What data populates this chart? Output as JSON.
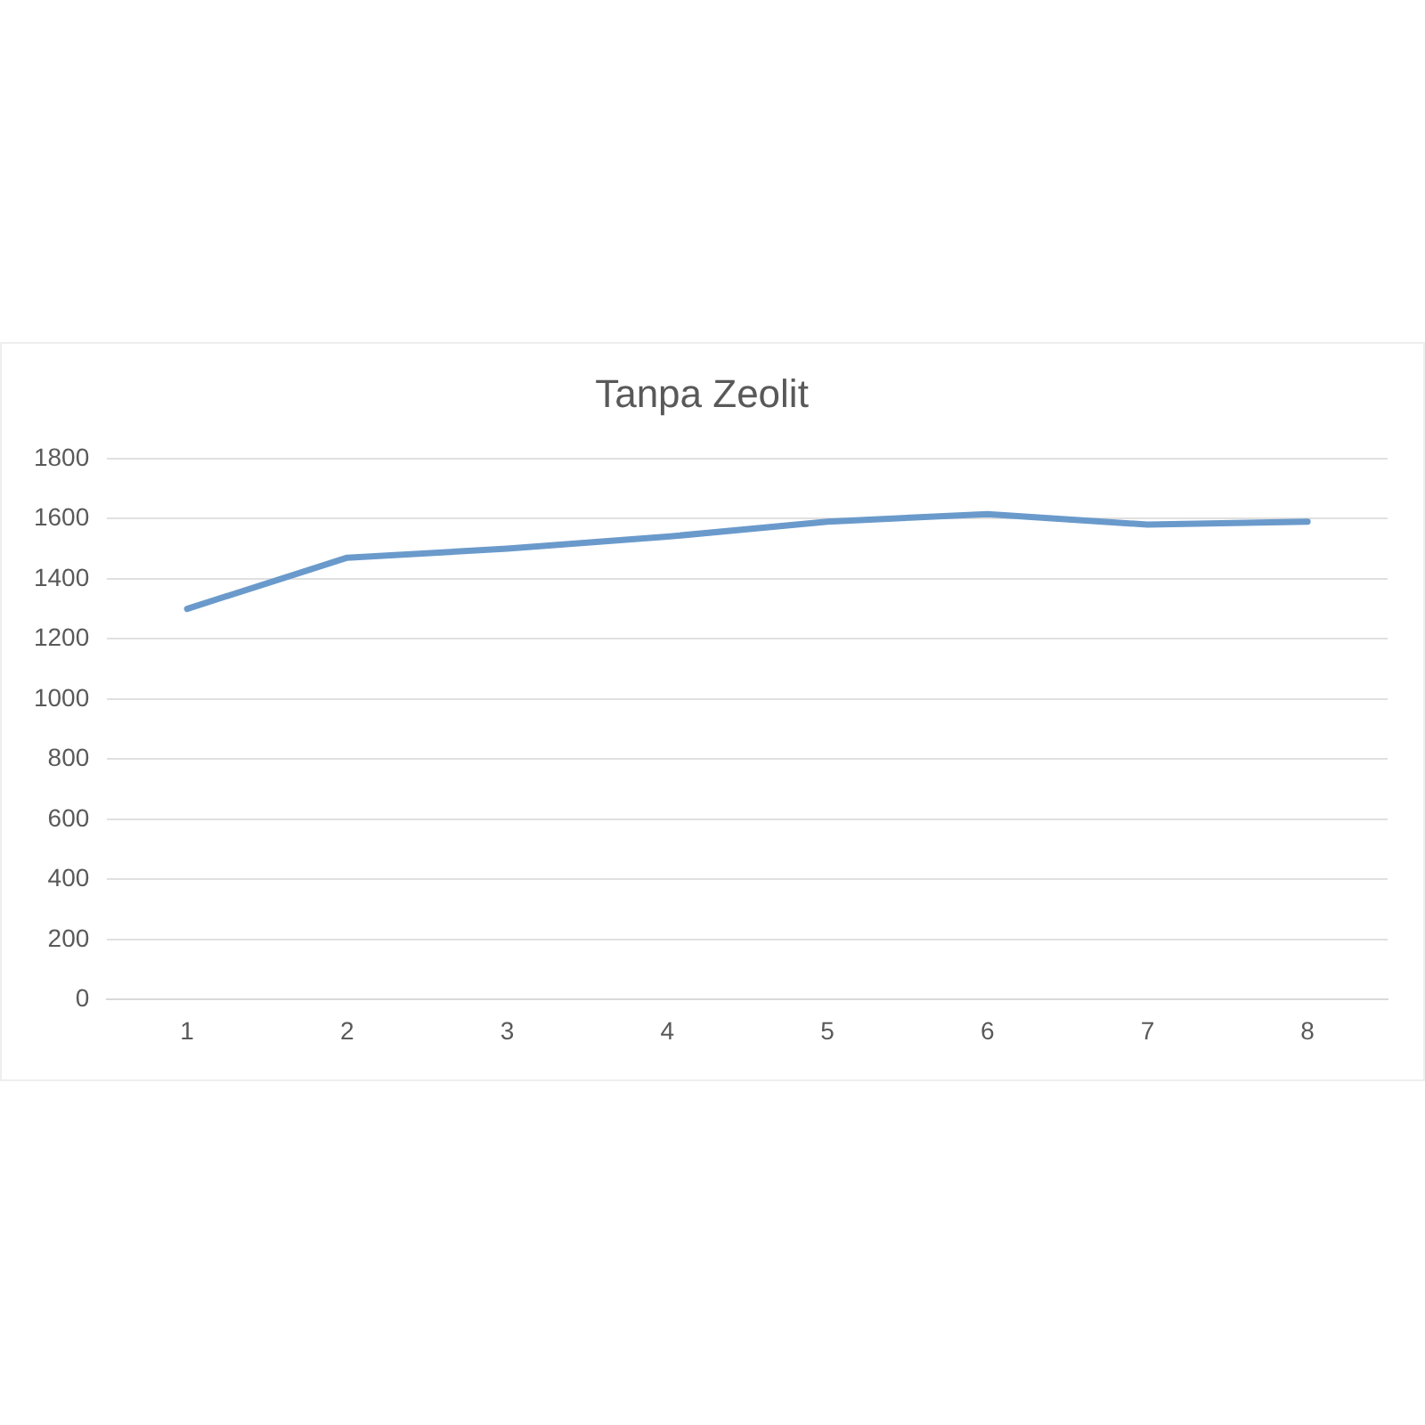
{
  "chart_data": {
    "type": "line",
    "title": "Tanpa Zeolit",
    "categories": [
      "1",
      "2",
      "3",
      "4",
      "5",
      "6",
      "7",
      "8"
    ],
    "series": [
      {
        "color": "#6a9acb",
        "values": [
          1300,
          1470,
          1500,
          1540,
          1590,
          1615,
          1580,
          1590
        ]
      }
    ],
    "ylim": [
      0,
      1800
    ],
    "yticks": [
      0,
      200,
      400,
      600,
      800,
      1000,
      1200,
      1400,
      1600,
      1800
    ],
    "grid": "y",
    "legend": false,
    "marker": "none"
  }
}
